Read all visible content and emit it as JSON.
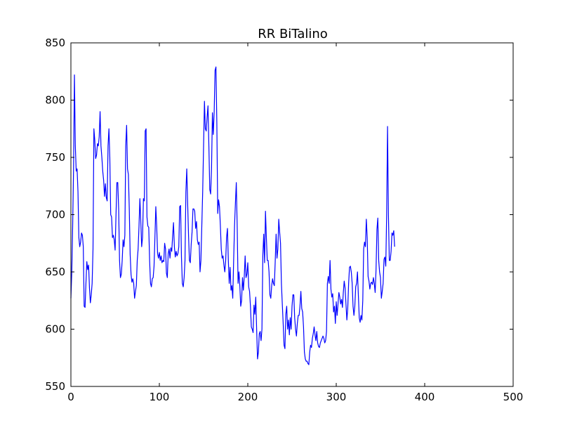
{
  "chart_data": {
    "type": "line",
    "title": "RR BiTalino",
    "xlabel": "",
    "ylabel": "",
    "xlim": [
      0,
      500
    ],
    "ylim": [
      550,
      850
    ],
    "xticks": [
      0,
      100,
      200,
      300,
      400,
      500
    ],
    "yticks": [
      550,
      600,
      650,
      700,
      750,
      800,
      850
    ],
    "grid": false,
    "line_color": "#0000ff",
    "series": [
      {
        "values": [
          627,
          650,
          690,
          740,
          822,
          760,
          738,
          740,
          720,
          680,
          672,
          676,
          684,
          682,
          672,
          620,
          619,
          640,
          659,
          652,
          656,
          636,
          623,
          630,
          640,
          670,
          775,
          765,
          749,
          752,
          762,
          760,
          768,
          790,
          760,
          750,
          738,
          730,
          716,
          727,
          715,
          712,
          760,
          775,
          750,
          700,
          698,
          680,
          682,
          678,
          669,
          700,
          728,
          728,
          705,
          660,
          645,
          648,
          660,
          678,
          672,
          682,
          760,
          778,
          740,
          735,
          705,
          665,
          648,
          641,
          644,
          640,
          627,
          633,
          638,
          660,
          670,
          690,
          714,
          695,
          672,
          680,
          714,
          712,
          773,
          775,
          698,
          690,
          689,
          660,
          640,
          637,
          644,
          645,
          655,
          680,
          707,
          690,
          666,
          662,
          667,
          660,
          664,
          658,
          660,
          659,
          675,
          670,
          649,
          645,
          666,
          670,
          662,
          671,
          668,
          681,
          693,
          672,
          663,
          668,
          664,
          666,
          672,
          707,
          708,
          663,
          640,
          637,
          645,
          660,
          720,
          740,
          710,
          682,
          660,
          658,
          674,
          685,
          705,
          705,
          703,
          688,
          694,
          678,
          674,
          676,
          650,
          660,
          690,
          720,
          760,
          799,
          775,
          773,
          785,
          795,
          760,
          722,
          718,
          740,
          789,
          770,
          790,
          826,
          829,
          780,
          701,
          713,
          707,
          690,
          670,
          662,
          664,
          656,
          650,
          660,
          680,
          688,
          660,
          640,
          654,
          634,
          638,
          627,
          660,
          690,
          710,
          728,
          690,
          640,
          650,
          638,
          620,
          625,
          645,
          634,
          646,
          664,
          645,
          648,
          658,
          637,
          633,
          620,
          602,
          600,
          597,
          621,
          613,
          628,
          600,
          574,
          580,
          596,
          598,
          590,
          600,
          664,
          683,
          658,
          703,
          680,
          660,
          660,
          650,
          630,
          627,
          638,
          644,
          640,
          638,
          659,
          683,
          662,
          670,
          696,
          685,
          675,
          640,
          622,
          605,
          586,
          583,
          613,
          620,
          600,
          608,
          595,
          610,
          600,
          620,
          630,
          630,
          610,
          600,
          594,
          605,
          612,
          612,
          620,
          633,
          618,
          615,
          602,
          580,
          574,
          572,
          572,
          570,
          569,
          580,
          586,
          584,
          592,
          596,
          602,
          595,
          590,
          598,
          588,
          585,
          584,
          588,
          590,
          592,
          594,
          592,
          588,
          590,
          598,
          640,
          646,
          640,
          660,
          635,
          628,
          631,
          615,
          620,
          605,
          624,
          612,
          622,
          632,
          628,
          622,
          626,
          619,
          632,
          642,
          636,
          622,
          608,
          618,
          640,
          654,
          655,
          650,
          640,
          620,
          612,
          620,
          637,
          640,
          650,
          630,
          610,
          606,
          612,
          608,
          625,
          670,
          676,
          672,
          696,
          680,
          646,
          642,
          635,
          640,
          641,
          639,
          645,
          640,
          632,
          652,
          687,
          697,
          660,
          650,
          645,
          627,
          633,
          640,
          661,
          663,
          655,
          700,
          777,
          700,
          660,
          660,
          668,
          684,
          682,
          686,
          672
        ]
      }
    ]
  }
}
